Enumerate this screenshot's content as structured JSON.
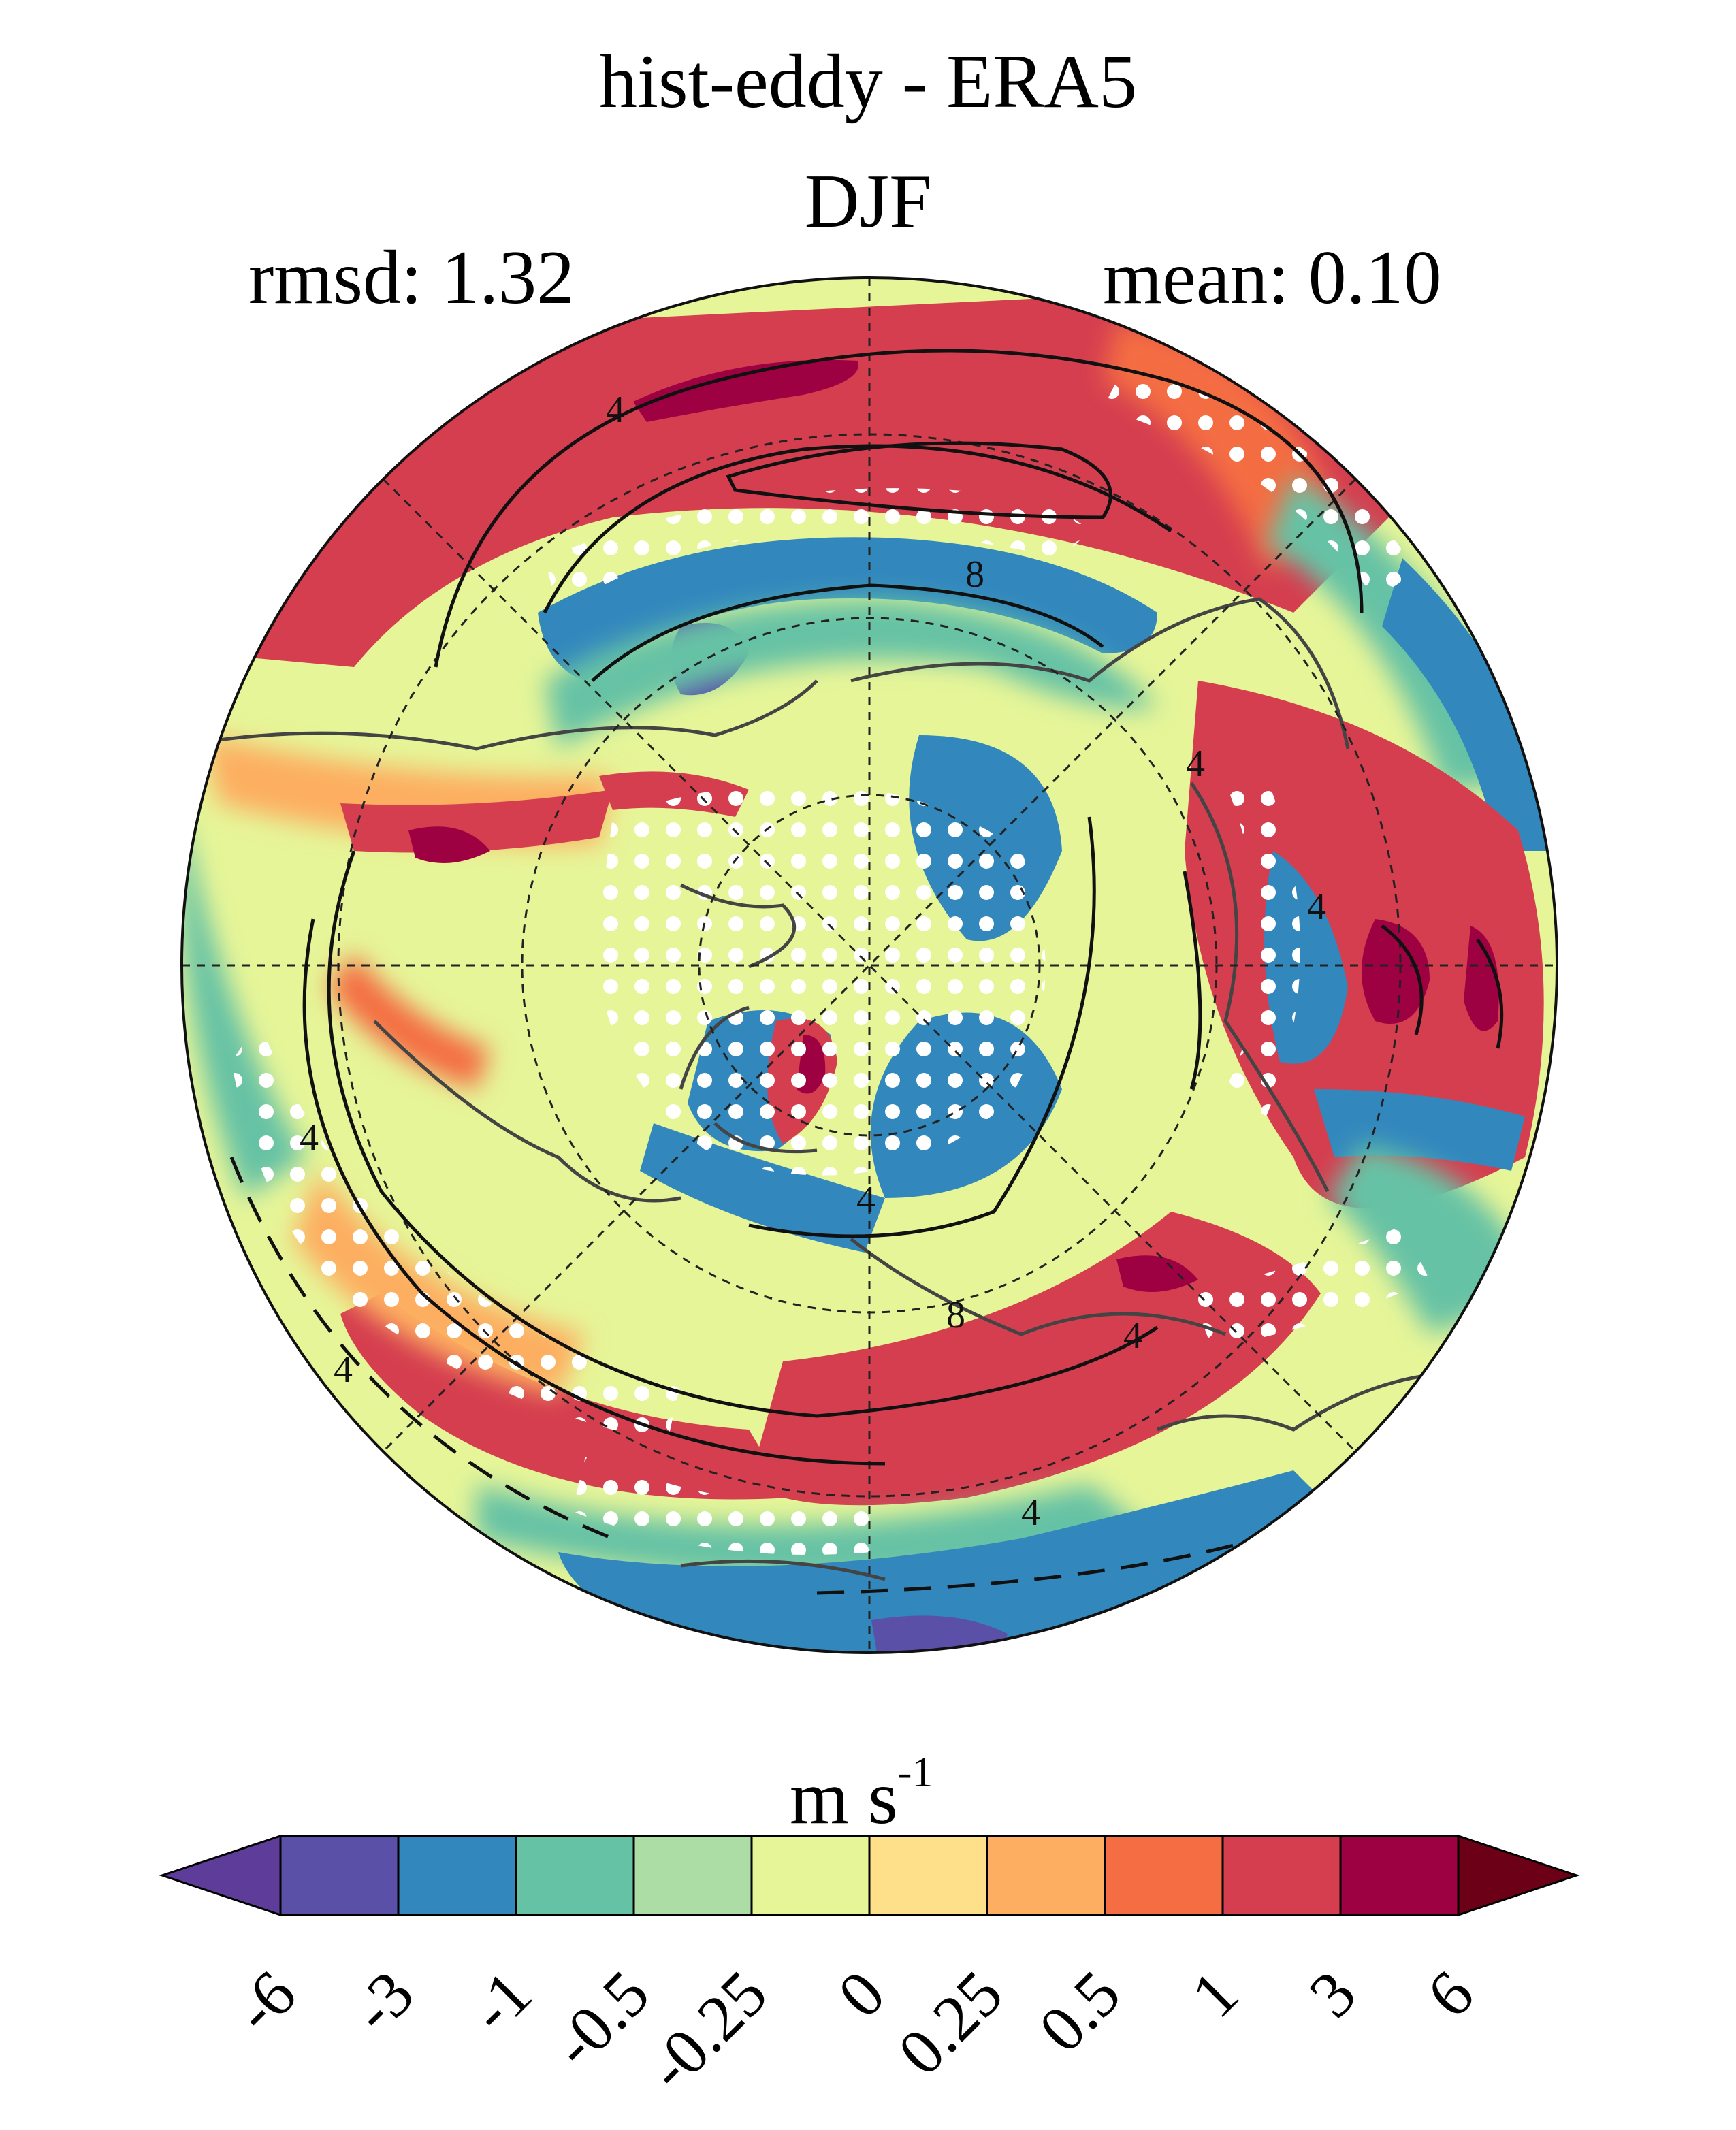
{
  "title": "hist-eddy - ERA5",
  "season": "DJF",
  "stats": {
    "rmsd": "rmsd: 1.32",
    "mean": "mean: 0.10"
  },
  "map": {
    "projection": "north-polar-stereographic",
    "variable_difference": "hist-eddy minus ERA5",
    "contour_labels": [
      "4",
      "8",
      "4",
      "4",
      "4",
      "4",
      "4",
      "8",
      "4",
      "4"
    ],
    "stippling": "white dots (significance)",
    "coastlines": true,
    "grid": true
  },
  "colorbar": {
    "unit_base": "m s",
    "unit_exp": "-1",
    "levels": [
      "-6",
      "-3",
      "-1",
      "-0.5",
      "-0.25",
      "0",
      "0.25",
      "0.5",
      "1",
      "3",
      "6"
    ],
    "colors": [
      "#5e3c99",
      "#5a50a8",
      "#3288bd",
      "#66c2a5",
      "#abdda4",
      "#e6f598",
      "#fee08b",
      "#fdae61",
      "#f46d43",
      "#d53e4f",
      "#9e0142",
      "#6b0016"
    ]
  }
}
